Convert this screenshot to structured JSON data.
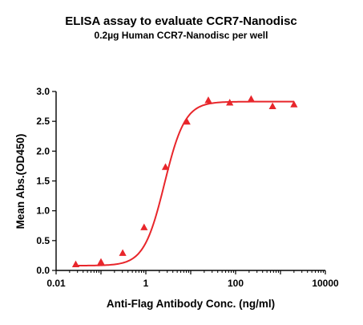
{
  "chart_data": {
    "type": "scatter",
    "title": "ELISA assay to evaluate CCR7-Nanodisc",
    "subtitle": "0.2µg Human CCR7-Nanodisc per well",
    "xlabel": "Anti-Flag Antibody Conc. (ng/ml)",
    "ylabel": "Mean Abs.(OD450)",
    "x_scale": "log",
    "xlim": [
      0.01,
      10000
    ],
    "ylim": [
      0,
      3.0
    ],
    "x_ticks": [
      0.01,
      1,
      100,
      10000
    ],
    "x_tick_labels": [
      "0.01",
      "1",
      "100",
      "10000"
    ],
    "y_ticks": [
      0.0,
      0.5,
      1.0,
      1.5,
      2.0,
      2.5,
      3.0
    ],
    "y_tick_labels": [
      "0.0",
      "0.5",
      "1.0",
      "1.5",
      "2.0",
      "2.5",
      "3.0"
    ],
    "grid": false,
    "series_color": "#e8262b",
    "marker": "triangle",
    "series": [
      {
        "x": [
          0.0274,
          0.1,
          0.305,
          0.914,
          2.74,
          8.23,
          24.7,
          74.1,
          222,
          667,
          2000
        ],
        "y": [
          0.1,
          0.14,
          0.29,
          0.72,
          1.73,
          2.49,
          2.85,
          2.81,
          2.87,
          2.75,
          2.78
        ]
      }
    ],
    "fit_curve": {
      "model": "4PL",
      "bottom": 0.08,
      "top": 2.83,
      "ec50": 2.6,
      "hill": 1.9
    }
  }
}
